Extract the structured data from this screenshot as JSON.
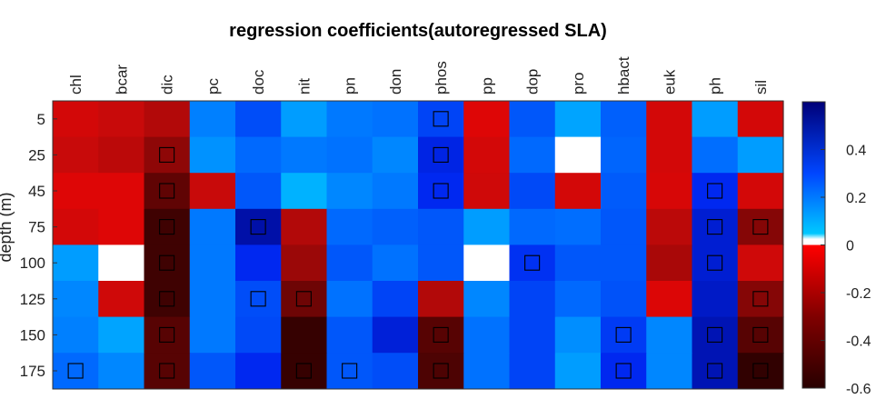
{
  "chart_data": {
    "type": "heatmap",
    "title": "regression coefficients(autoregressed SLA)",
    "ylabel": "depth (m)",
    "xlabel": "",
    "columns": [
      "chl",
      "bcar",
      "dic",
      "pc",
      "doc",
      "nit",
      "pn",
      "don",
      "phos",
      "pp",
      "dop",
      "pro",
      "hbact",
      "euk",
      "ph",
      "sil"
    ],
    "rows": [
      "5",
      "25",
      "45",
      "75",
      "100",
      "125",
      "150",
      "175"
    ],
    "values": [
      [
        -0.2,
        -0.25,
        -0.3,
        0.2,
        0.32,
        0.12,
        0.22,
        0.24,
        0.34,
        -0.15,
        0.3,
        0.1,
        0.28,
        -0.2,
        0.12,
        -0.2
      ],
      [
        -0.25,
        -0.28,
        -0.38,
        0.15,
        0.26,
        0.22,
        0.24,
        0.18,
        0.42,
        -0.2,
        0.26,
        null,
        0.27,
        -0.2,
        0.25,
        0.12
      ],
      [
        -0.15,
        -0.15,
        -0.48,
        -0.25,
        0.3,
        0.06,
        0.18,
        0.22,
        0.4,
        -0.22,
        0.33,
        -0.2,
        0.29,
        -0.18,
        0.4,
        -0.2
      ],
      [
        -0.2,
        -0.15,
        -0.55,
        0.22,
        0.52,
        -0.3,
        0.26,
        0.28,
        0.3,
        0.12,
        0.26,
        0.25,
        0.3,
        -0.28,
        0.45,
        -0.4
      ],
      [
        0.12,
        null,
        -0.55,
        0.22,
        0.4,
        -0.35,
        0.3,
        0.24,
        0.3,
        null,
        0.38,
        0.3,
        0.3,
        -0.32,
        0.45,
        -0.22
      ],
      [
        0.18,
        -0.22,
        -0.55,
        0.22,
        0.32,
        -0.45,
        0.24,
        0.34,
        -0.3,
        0.18,
        0.34,
        0.26,
        0.31,
        -0.16,
        0.47,
        -0.4
      ],
      [
        0.2,
        0.1,
        -0.5,
        0.22,
        0.33,
        -0.57,
        0.3,
        0.44,
        -0.5,
        0.24,
        0.34,
        0.16,
        0.36,
        0.18,
        0.5,
        -0.5
      ],
      [
        0.26,
        0.18,
        -0.5,
        0.3,
        0.4,
        -0.57,
        0.3,
        0.32,
        -0.52,
        0.24,
        0.34,
        0.12,
        0.4,
        0.18,
        0.5,
        -0.58
      ]
    ],
    "significant_cells": [
      [
        0,
        8
      ],
      [
        1,
        2
      ],
      [
        1,
        8
      ],
      [
        2,
        2
      ],
      [
        2,
        8
      ],
      [
        2,
        14
      ],
      [
        3,
        2
      ],
      [
        3,
        4
      ],
      [
        3,
        14
      ],
      [
        3,
        15
      ],
      [
        4,
        2
      ],
      [
        4,
        10
      ],
      [
        4,
        14
      ],
      [
        5,
        2
      ],
      [
        5,
        4
      ],
      [
        5,
        5
      ],
      [
        5,
        15
      ],
      [
        6,
        2
      ],
      [
        6,
        8
      ],
      [
        6,
        12
      ],
      [
        6,
        14
      ],
      [
        6,
        15
      ],
      [
        7,
        0
      ],
      [
        7,
        2
      ],
      [
        7,
        5
      ],
      [
        7,
        6
      ],
      [
        7,
        8
      ],
      [
        7,
        12
      ],
      [
        7,
        14
      ],
      [
        7,
        15
      ]
    ],
    "colorbar": {
      "ticks": [
        0.4,
        0.2,
        0,
        -0.2,
        -0.4,
        -0.6
      ],
      "tick_labels": [
        "0.4",
        "0.2",
        "0",
        "-0.2",
        "-0.4",
        "-0.6"
      ],
      "range": [
        -0.6,
        0.6
      ]
    },
    "colors": {
      "missing": "#ffffff",
      "marker": "#000000"
    }
  }
}
